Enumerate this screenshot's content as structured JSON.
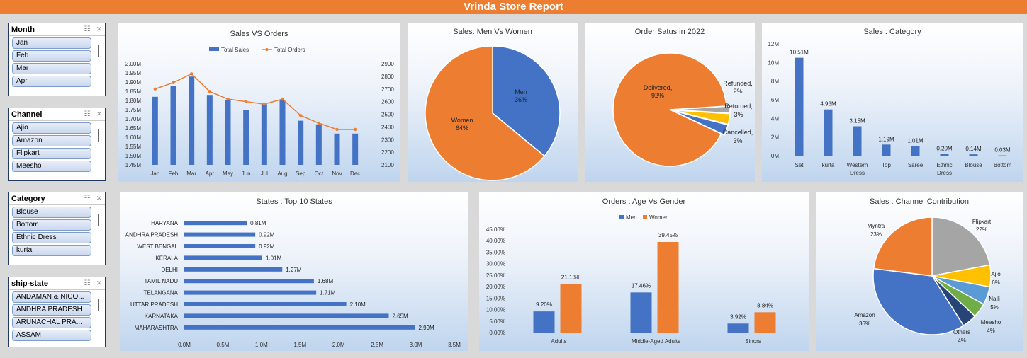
{
  "title": "Vrinda Store Report",
  "slicers": [
    {
      "title": "Month",
      "items": [
        "Jan",
        "Feb",
        "Mar",
        "Apr"
      ]
    },
    {
      "title": "Channel",
      "items": [
        "Ajio",
        "Amazon",
        "Flipkart",
        "Meesho"
      ]
    },
    {
      "title": "Category",
      "items": [
        "Blouse",
        "Bottom",
        "Ethnic Dress",
        "kurta"
      ]
    },
    {
      "title": "ship-state",
      "items": [
        "ANDAMAN & NICO...",
        "ANDHRA PRADESH",
        "ARUNACHAL PRA...",
        "ASSAM"
      ]
    }
  ],
  "colors": {
    "blue": "#4472c4",
    "orange": "#ed7d31",
    "gray": "#a5a5a5",
    "yellow": "#ffc000",
    "lightblue": "#5b9bd5",
    "green": "#70ad47",
    "navy": "#264478"
  },
  "chart_data": [
    {
      "id": "sales_vs_orders",
      "type": "bar",
      "title": "Sales VS Orders",
      "categories": [
        "Jan",
        "Feb",
        "Mar",
        "Apr",
        "May",
        "Jun",
        "Jul",
        "Aug",
        "Sep",
        "Oct",
        "Nov",
        "Dec"
      ],
      "series": [
        {
          "name": "Total Sales",
          "type": "bar",
          "axis": "left",
          "values": [
            1.82,
            1.88,
            1.93,
            1.83,
            1.8,
            1.75,
            1.78,
            1.8,
            1.69,
            1.67,
            1.62,
            1.62
          ]
        },
        {
          "name": "Total Orders",
          "type": "line",
          "axis": "right",
          "values": [
            2700,
            2750,
            2820,
            2680,
            2620,
            2600,
            2580,
            2620,
            2490,
            2430,
            2380,
            2380
          ]
        }
      ],
      "y_left_ticks": [
        "1.45M",
        "1.50M",
        "1.55M",
        "1.60M",
        "1.65M",
        "1.70M",
        "1.75M",
        "1.80M",
        "1.85M",
        "1.90M",
        "1.95M",
        "2.00M"
      ],
      "ylim_left": [
        1.45,
        2.0
      ],
      "y_right_ticks": [
        "2100",
        "2200",
        "2300",
        "2400",
        "2500",
        "2600",
        "2700",
        "2800",
        "2900"
      ],
      "ylim_right": [
        2100,
        2900
      ],
      "legend": "top"
    },
    {
      "id": "men_vs_women",
      "type": "pie",
      "title": "Sales: Men Vs Women",
      "slices": [
        {
          "label": "Men",
          "value": 36,
          "pct": "36%"
        },
        {
          "label": "Women",
          "value": 64,
          "pct": "64%"
        }
      ]
    },
    {
      "id": "order_status",
      "type": "pie",
      "title": "Order Satus in 2022",
      "slices": [
        {
          "label": "Delivered,",
          "value": 92,
          "pct": "92%"
        },
        {
          "label": "Refunded,",
          "value": 2,
          "pct": "2%"
        },
        {
          "label": "Returned,",
          "value": 3,
          "pct": "3%"
        },
        {
          "label": "Cancelled,",
          "value": 3,
          "pct": "3%"
        }
      ]
    },
    {
      "id": "sales_category",
      "type": "bar",
      "title": "Sales : Category",
      "categories": [
        "Set",
        "kurta",
        "Western Dress",
        "Top",
        "Saree",
        "Ethnic Dress",
        "Blouse",
        "Bottom"
      ],
      "values": [
        10.51,
        4.96,
        3.15,
        1.19,
        1.01,
        0.2,
        0.14,
        0.03
      ],
      "data_labels": [
        "10.51M",
        "4.96M",
        "3.15M",
        "1.19M",
        "1.01M",
        "0.20M",
        "0.14M",
        "0.03M"
      ],
      "y_ticks": [
        "0M",
        "2M",
        "4M",
        "6M",
        "8M",
        "10M",
        "12M"
      ],
      "ylim": [
        0,
        12
      ]
    },
    {
      "id": "top_states",
      "type": "bar",
      "orientation": "horizontal",
      "title": "States : Top 10 States",
      "categories": [
        "HARYANA",
        "ANDHRA PRADESH",
        "WEST BENGAL",
        "KERALA",
        "DELHI",
        "TAMIL NADU",
        "TELANGANA",
        "UTTAR PRADESH",
        "KARNATAKA",
        "MAHARASHTRA"
      ],
      "values": [
        0.81,
        0.92,
        0.92,
        1.01,
        1.27,
        1.68,
        1.71,
        2.1,
        2.65,
        2.99
      ],
      "data_labels": [
        "0.81M",
        "0.92M",
        "0.92M",
        "1.01M",
        "1.27M",
        "1.68M",
        "1.71M",
        "2.10M",
        "2.65M",
        "2.99M"
      ],
      "x_ticks": [
        "0.0M",
        "0.5M",
        "1.0M",
        "1.5M",
        "2.0M",
        "2.5M",
        "3.0M",
        "3.5M"
      ],
      "xlim": [
        0,
        3.5
      ]
    },
    {
      "id": "age_vs_gender",
      "type": "bar",
      "title": "Orders : Age Vs Gender",
      "categories": [
        "Adults",
        "Middle-Aged Adults",
        "Sinors"
      ],
      "series": [
        {
          "name": "Men",
          "values": [
            9.2,
            17.46,
            3.92
          ],
          "data_labels": [
            "9.20%",
            "17.46%",
            "3.92%"
          ]
        },
        {
          "name": "Women",
          "values": [
            21.13,
            39.45,
            8.84
          ],
          "data_labels": [
            "21.13%",
            "39.45%",
            "8.84%"
          ]
        }
      ],
      "y_ticks": [
        "0.00%",
        "5.00%",
        "10.00%",
        "15.00%",
        "20.00%",
        "25.00%",
        "30.00%",
        "35.00%",
        "40.00%",
        "45.00%"
      ],
      "ylim": [
        0,
        45
      ],
      "legend": "top"
    },
    {
      "id": "channel_contribution",
      "type": "pie",
      "title": "Sales : Channel Contribution",
      "slices": [
        {
          "label": "Flipkart",
          "value": 22,
          "pct": "22%"
        },
        {
          "label": "Ajio",
          "value": 6,
          "pct": "6%"
        },
        {
          "label": "Nalli",
          "value": 5,
          "pct": "5%"
        },
        {
          "label": "Meesho",
          "value": 4,
          "pct": "4%"
        },
        {
          "label": "Others",
          "value": 4,
          "pct": "4%"
        },
        {
          "label": "Amazon",
          "value": 36,
          "pct": "36%"
        },
        {
          "label": "Myntra",
          "value": 23,
          "pct": "23%"
        }
      ]
    }
  ]
}
